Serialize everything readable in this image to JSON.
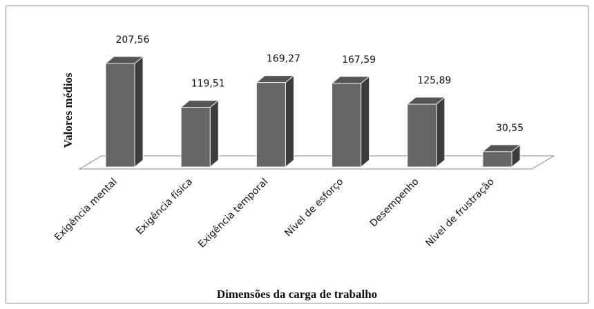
{
  "chart_data": {
    "type": "bar3d",
    "x_label": "Dimensões da carga de trabalho",
    "y_label": "Valores médios",
    "categories": [
      "Exigência mental",
      "Exigência física",
      "Exigência temporal",
      "Nível de esforço",
      "Desempenho",
      "Nível de frustração"
    ],
    "values": [
      207.56,
      119.51,
      169.27,
      167.59,
      125.89,
      30.55
    ],
    "value_labels": [
      "207,56",
      "119,51",
      "169,27",
      "167,59",
      "125,89",
      "30,55"
    ],
    "color": "#666666"
  }
}
